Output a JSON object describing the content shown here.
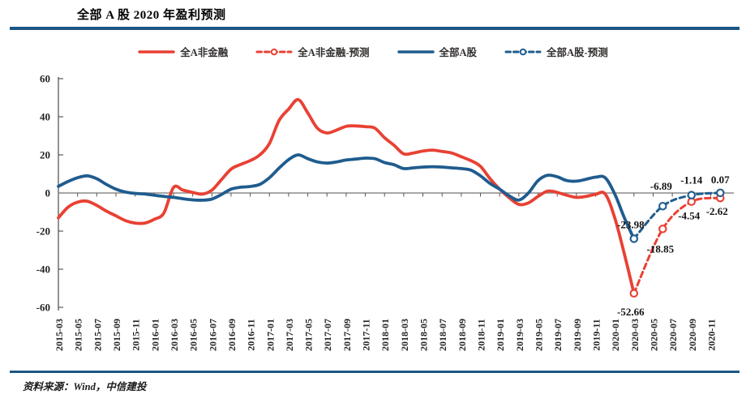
{
  "page": {
    "title": "全部 A 股 2020 年盈利预测",
    "source": "资料来源：Wind，中信建投"
  },
  "colors": {
    "red_series": "#e84133",
    "blue_series": "#1f5c8e",
    "rule_blue": "#1b5784",
    "zero_line_gray": "#8c8c8c"
  },
  "legend": [
    {
      "label": "全A非金融",
      "color": "#e84133",
      "style": "solid"
    },
    {
      "label": "全A非金融-预测",
      "color": "#e84133",
      "style": "dashed"
    },
    {
      "label": "全部A股",
      "color": "#1f5c8e",
      "style": "solid"
    },
    {
      "label": "全部A股-预测",
      "color": "#1f5c8e",
      "style": "dashed"
    }
  ],
  "chart_data": {
    "type": "line",
    "title": "全部 A 股 2020 年盈利预测",
    "ylabel": "",
    "xlabel": "",
    "ylim": [
      -60,
      60
    ],
    "y_ticks": [
      60,
      40,
      20,
      0,
      -20,
      -40,
      -60
    ],
    "grid": false,
    "legend_position": "top",
    "x_tick_labels": [
      "2015-03",
      "2015-05",
      "2015-07",
      "2015-09",
      "2015-11",
      "2016-01",
      "2016-03",
      "2016-05",
      "2016-07",
      "2016-09",
      "2016-11",
      "2017-01",
      "2017-03",
      "2017-05",
      "2017-07",
      "2017-09",
      "2017-11",
      "2018-01",
      "2018-03",
      "2018-05",
      "2018-07",
      "2018-09",
      "2018-11",
      "2019-01",
      "2019-03",
      "2019-05",
      "2019-07",
      "2019-09",
      "2019-11",
      "2020-01",
      "2020-03",
      "2020-05",
      "2020-07",
      "2020-09",
      "2020-11"
    ],
    "series": [
      {
        "name": "全A非金融",
        "color": "#e84133",
        "style": "solid",
        "x_start": "2015-03",
        "monthly_values": [
          -13,
          -7.5,
          -4.8,
          -4.3,
          -6.5,
          -9.5,
          -12,
          -14.5,
          -15.8,
          -15.8,
          -13.8,
          -10.5,
          2.9,
          1.5,
          0.3,
          -0.6,
          1.5,
          7,
          12.5,
          15,
          17,
          20,
          26,
          38,
          44,
          49,
          42,
          34,
          31.5,
          33,
          35,
          35.2,
          34.8,
          34,
          29,
          25,
          20.5,
          21,
          22,
          22.5,
          21.8,
          21,
          19,
          17,
          14,
          7.5,
          2,
          -2.5,
          -6,
          -5.2,
          -1.8,
          1,
          0.3,
          -1.2,
          -2.3,
          -1.8,
          -0.7,
          -0.5,
          -13,
          -32,
          -52.66
        ]
      },
      {
        "name": "全A非金融-预测",
        "color": "#e84133",
        "style": "dashed",
        "points": [
          {
            "x": "2020-03",
            "y": -52.66
          },
          {
            "x": "2020-06",
            "y": -18.85
          },
          {
            "x": "2020-09",
            "y": -4.54
          },
          {
            "x": "2020-12",
            "y": -2.62
          }
        ]
      },
      {
        "name": "全部A股",
        "color": "#1f5c8e",
        "style": "solid",
        "x_start": "2015-03",
        "monthly_values": [
          3.5,
          6,
          8,
          9,
          7.5,
          4.5,
          2,
          0.5,
          -0.2,
          -0.5,
          -1.2,
          -1.8,
          -2.3,
          -3,
          -3.6,
          -3.8,
          -3.2,
          -0.8,
          2,
          3,
          3.4,
          4.5,
          8,
          13,
          17.5,
          20,
          18,
          16.3,
          15.7,
          16.3,
          17.3,
          17.8,
          18.3,
          18,
          16,
          14.8,
          12.8,
          13.2,
          13.6,
          13.8,
          13.6,
          13.2,
          12.8,
          12,
          9,
          5,
          2,
          -1.5,
          -3.7,
          0,
          6.5,
          9.3,
          8.5,
          6.5,
          6.2,
          7.2,
          8.3,
          8,
          -0.5,
          -13,
          -23.98
        ]
      },
      {
        "name": "全部A股-预测",
        "color": "#1f5c8e",
        "style": "dashed",
        "points": [
          {
            "x": "2020-03",
            "y": -23.98
          },
          {
            "x": "2020-06",
            "y": -6.89
          },
          {
            "x": "2020-09",
            "y": -1.14
          },
          {
            "x": "2020-12",
            "y": 0.07
          }
        ]
      }
    ]
  }
}
